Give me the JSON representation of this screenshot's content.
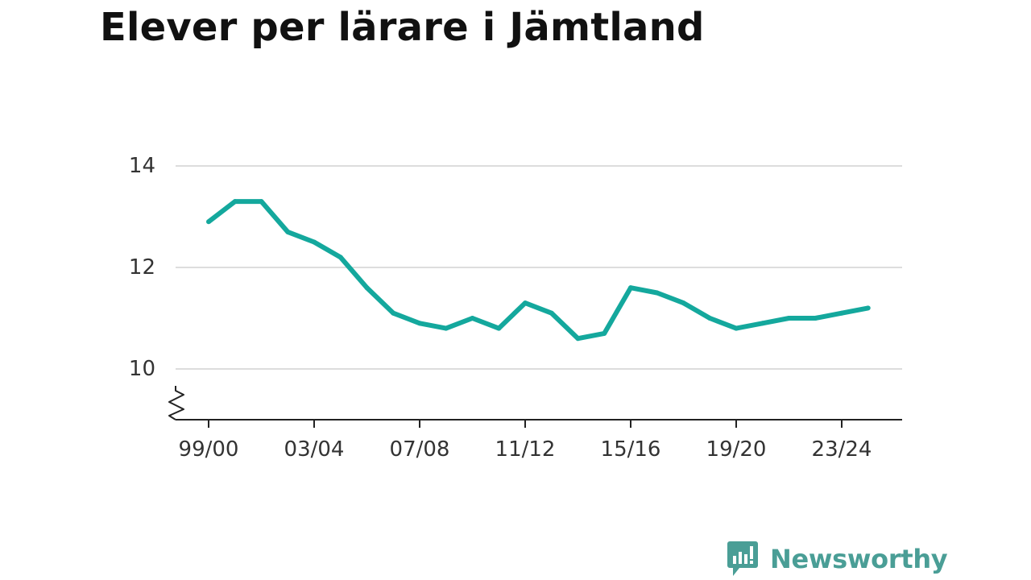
{
  "chart_data": {
    "type": "line",
    "title": "Elever per lärare i Jämtland",
    "xlabel": "",
    "ylabel": "",
    "x": [
      "99/00",
      "00/01",
      "01/02",
      "02/03",
      "03/04",
      "04/05",
      "05/06",
      "06/07",
      "07/08",
      "08/09",
      "09/10",
      "10/11",
      "11/12",
      "12/13",
      "13/14",
      "14/15",
      "15/16",
      "16/17",
      "17/18",
      "18/19",
      "19/20",
      "20/21",
      "21/22",
      "22/23",
      "23/24",
      "24/25"
    ],
    "x_tick_labels": [
      "99/00",
      "03/04",
      "07/08",
      "11/12",
      "15/16",
      "19/20",
      "23/24"
    ],
    "series": [
      {
        "values": [
          12.9,
          13.3,
          13.3,
          12.7,
          12.5,
          12.2,
          11.6,
          11.1,
          10.9,
          10.8,
          11.0,
          10.8,
          11.3,
          11.1,
          10.6,
          10.7,
          11.6,
          11.5,
          11.3,
          11.0,
          10.8,
          10.9,
          11.0,
          11.0,
          11.1,
          11.2
        ],
        "color": "#14a89d"
      }
    ],
    "y_ticks": [
      10,
      12,
      14
    ],
    "ylim": [
      9,
      14
    ],
    "y_axis_break": true,
    "grid": true,
    "gridline_color": "#dddddd",
    "axis_color": "#222222"
  },
  "brand": {
    "name": "Newsworthy",
    "icon": "newsworthy-logo-icon",
    "color": "#4a9e96"
  }
}
